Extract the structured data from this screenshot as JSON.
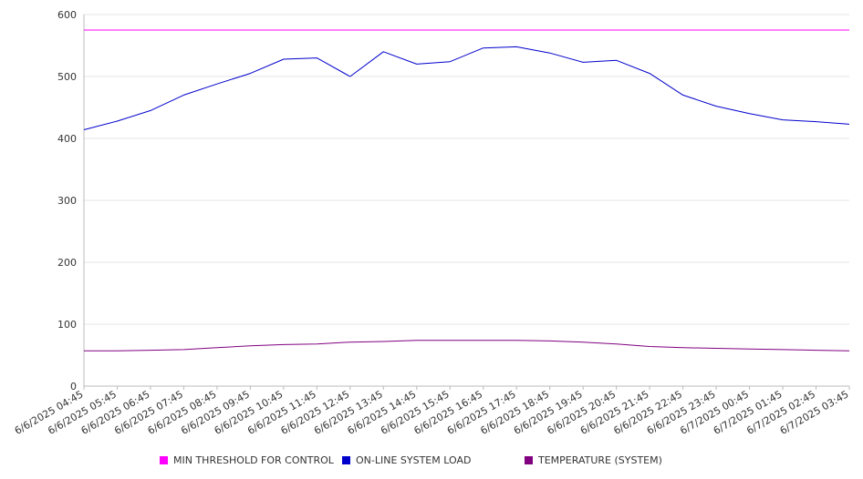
{
  "chart_data": {
    "type": "line",
    "title": "",
    "xlabel": "",
    "ylabel": "",
    "ylim": [
      0,
      600
    ],
    "yticks": [
      0,
      100,
      200,
      300,
      400,
      500,
      600
    ],
    "grid": true,
    "legend_position": "bottom",
    "x": [
      "6/6/2025 04:45",
      "6/6/2025 05:45",
      "6/6/2025 06:45",
      "6/6/2025 07:45",
      "6/6/2025 08:45",
      "6/6/2025 09:45",
      "6/6/2025 10:45",
      "6/6/2025 11:45",
      "6/6/2025 12:45",
      "6/6/2025 13:45",
      "6/6/2025 14:45",
      "6/6/2025 15:45",
      "6/6/2025 16:45",
      "6/6/2025 17:45",
      "6/6/2025 18:45",
      "6/6/2025 19:45",
      "6/6/2025 20:45",
      "6/6/2025 21:45",
      "6/6/2025 22:45",
      "6/6/2025 23:45",
      "6/7/2025 00:45",
      "6/7/2025 01:45",
      "6/7/2025 02:45",
      "6/7/2025 03:45"
    ],
    "series": [
      {
        "name": "MIN THRESHOLD FOR CONTROL",
        "color": "#ff00ff",
        "values": [
          575,
          575,
          575,
          575,
          575,
          575,
          575,
          575,
          575,
          575,
          575,
          575,
          575,
          575,
          575,
          575,
          575,
          575,
          575,
          575,
          575,
          575,
          575,
          575
        ]
      },
      {
        "name": "ON-LINE SYSTEM LOAD",
        "color": "#0000cc",
        "values": [
          414,
          428,
          445,
          470,
          488,
          505,
          528,
          530,
          500,
          540,
          520,
          524,
          546,
          548,
          538,
          523,
          526,
          505,
          470,
          452,
          440,
          430,
          427,
          423
        ]
      },
      {
        "name": "TEMPERATURE (SYSTEM)",
        "color": "#800080",
        "values": [
          57,
          57,
          58,
          59,
          62,
          65,
          67,
          68,
          71,
          72,
          74,
          74,
          74,
          74,
          73,
          71,
          68,
          64,
          62,
          61,
          60,
          59,
          58,
          57
        ]
      }
    ]
  }
}
